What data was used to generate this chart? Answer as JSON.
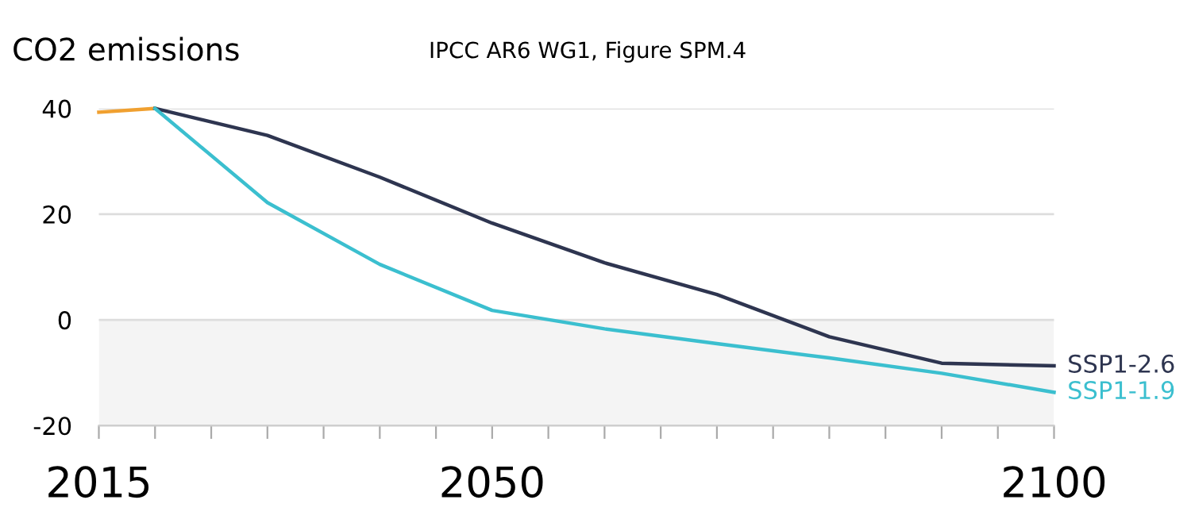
{
  "chart_data": {
    "type": "line",
    "title": "CO2 emissions",
    "subtitle": "IPCC AR6 WG1, Figure SPM.4",
    "xlim": [
      2015,
      2100
    ],
    "xticks": [
      2015,
      {
        "value": 2020,
        "label": null
      },
      {
        "value": 2025,
        "label": null
      },
      {
        "value": 2030,
        "label": null
      },
      {
        "value": 2035,
        "label": null
      },
      {
        "value": 2040,
        "label": null
      },
      {
        "value": 2045,
        "label": null
      },
      2050,
      {
        "value": 2055,
        "label": null
      },
      {
        "value": 2060,
        "label": null
      },
      {
        "value": 2065,
        "label": null
      },
      {
        "value": 2070,
        "label": null
      },
      {
        "value": 2075,
        "label": null
      },
      {
        "value": 2080,
        "label": null
      },
      {
        "value": 2085,
        "label": null
      },
      {
        "value": 2090,
        "label": null
      },
      {
        "value": 2095,
        "label": null
      },
      2100
    ],
    "ylim": [
      -20,
      40
    ],
    "yticks": [
      -20,
      0,
      20,
      40
    ],
    "grid": "y",
    "legend": false,
    "marker": "none",
    "line_style": "solid",
    "bands": [
      {
        "axis": "y",
        "from": -20,
        "to": 0,
        "color": "#f4f4f4"
      }
    ],
    "series": [
      {
        "color": "#f0a030",
        "x": [
          2015,
          2020
        ],
        "values": [
          39.3,
          40
        ]
      },
      {
        "name": "SSP1-2.6",
        "color": "#2e3550",
        "x": [
          2020,
          2030,
          2040,
          2050,
          2060,
          2070,
          2080,
          2090,
          2100
        ],
        "values": [
          40,
          34.9,
          27,
          18.3,
          10.8,
          4.8,
          -3.2,
          -8.2,
          -8.7
        ]
      },
      {
        "name": "SSP1-1.9",
        "color": "#3bbfcf",
        "x": [
          2020,
          2030,
          2040,
          2050,
          2060,
          2070,
          2080,
          2090,
          2100
        ],
        "values": [
          40,
          22.2,
          10.5,
          1.8,
          -1.7,
          -4.5,
          -7.2,
          -10.1,
          -13.7
        ]
      }
    ]
  }
}
